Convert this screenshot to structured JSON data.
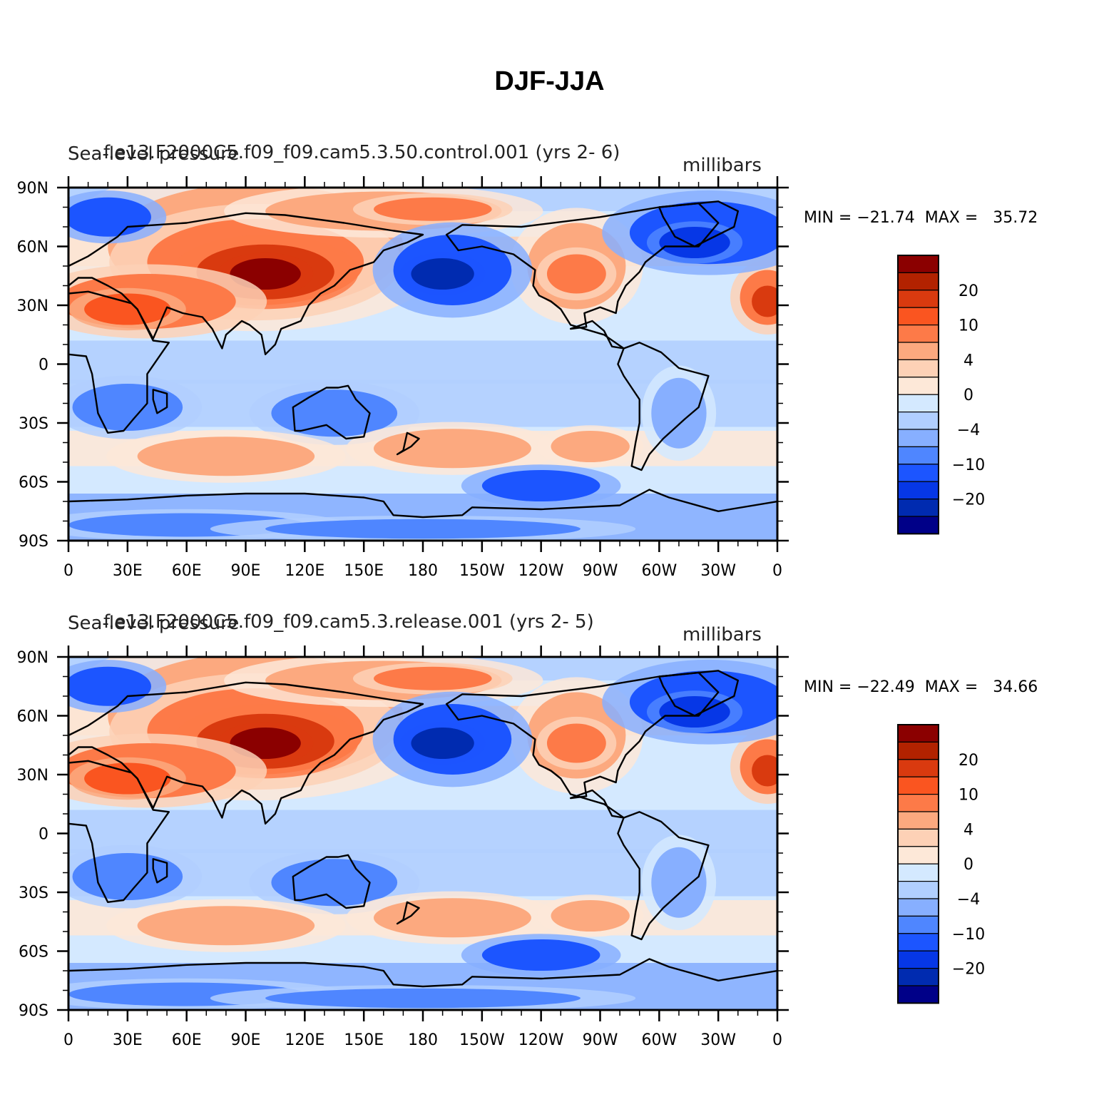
{
  "title": "DJF-JJA",
  "lat_labels": [
    "90N",
    "60N",
    "30N",
    "0",
    "30S",
    "60S",
    "90S"
  ],
  "lon_labels": [
    "0",
    "30E",
    "60E",
    "90E",
    "120E",
    "150E",
    "180",
    "150W",
    "120W",
    "90W",
    "60W",
    "30W",
    "0"
  ],
  "colorbar": {
    "labels": [
      "20",
      "10",
      "4",
      "0",
      "−4",
      "−10",
      "−20"
    ],
    "colors": [
      "#8b0000",
      "#b22200",
      "#d93a0f",
      "#fa5520",
      "#fd7a48",
      "#fca97f",
      "#fdd1b6",
      "#fde8d8",
      "#d4e9ff",
      "#b1cfff",
      "#87afff",
      "#4f86ff",
      "#1c55ff",
      "#0637e6",
      "#002bb0",
      "#000088"
    ]
  },
  "panels": [
    {
      "variable": "Sea-level pressure",
      "case": "f.e13.F2000C5.f09_f09.cam5.3.50.control.001  (yrs  2- 6)",
      "units": "millibars",
      "minmax": "MIN = −21.74  MAX =   35.72"
    },
    {
      "variable": "Sea-level pressure",
      "case": "f.e13.F2000C5.f09_f09.cam5.3.release.001  (yrs  2- 5)",
      "units": "millibars",
      "minmax": "MIN = −22.49  MAX =   34.66"
    }
  ]
}
